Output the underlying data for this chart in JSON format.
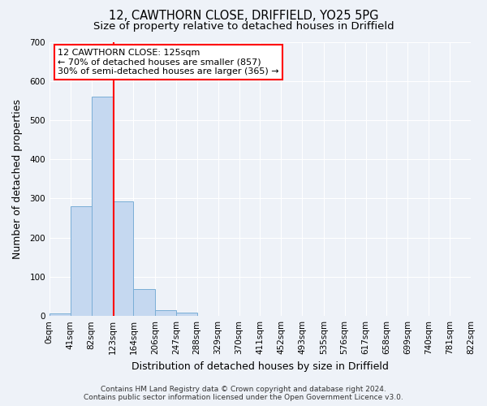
{
  "title_line1": "12, CAWTHORN CLOSE, DRIFFIELD, YO25 5PG",
  "title_line2": "Size of property relative to detached houses in Driffield",
  "xlabel": "Distribution of detached houses by size in Driffield",
  "ylabel": "Number of detached properties",
  "bar_edges": [
    0,
    41,
    82,
    123,
    164,
    206,
    247,
    288,
    329,
    370,
    411,
    452,
    493,
    535,
    576,
    617,
    658,
    699,
    740,
    781,
    822
  ],
  "bar_heights": [
    7,
    281,
    560,
    293,
    69,
    14,
    8,
    0,
    0,
    0,
    0,
    0,
    0,
    0,
    0,
    0,
    0,
    0,
    0,
    0
  ],
  "bar_color": "#c5d8f0",
  "bar_edgecolor": "#7aaed6",
  "vline_x": 125,
  "vline_color": "red",
  "ylim": [
    0,
    700
  ],
  "yticks": [
    0,
    100,
    200,
    300,
    400,
    500,
    600,
    700
  ],
  "xtick_labels": [
    "0sqm",
    "41sqm",
    "82sqm",
    "123sqm",
    "164sqm",
    "206sqm",
    "247sqm",
    "288sqm",
    "329sqm",
    "370sqm",
    "411sqm",
    "452sqm",
    "493sqm",
    "535sqm",
    "576sqm",
    "617sqm",
    "658sqm",
    "699sqm",
    "740sqm",
    "781sqm",
    "822sqm"
  ],
  "annotation_title": "12 CAWTHORN CLOSE: 125sqm",
  "annotation_line1": "← 70% of detached houses are smaller (857)",
  "annotation_line2": "30% of semi-detached houses are larger (365) →",
  "annotation_box_color": "white",
  "annotation_box_edgecolor": "red",
  "footer_line1": "Contains HM Land Registry data © Crown copyright and database right 2024.",
  "footer_line2": "Contains public sector information licensed under the Open Government Licence v3.0.",
  "background_color": "#eef2f8",
  "grid_color": "white",
  "title_fontsize": 10.5,
  "subtitle_fontsize": 9.5,
  "axis_label_fontsize": 9,
  "tick_fontsize": 7.5,
  "annotation_fontsize": 8,
  "footer_fontsize": 6.5
}
